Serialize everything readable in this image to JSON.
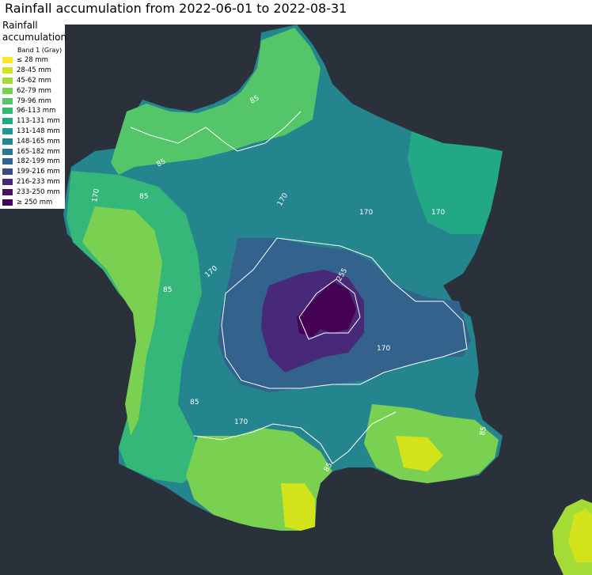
{
  "title": "Rainfall accumulation from 2022-06-01 to 2022-08-31",
  "legend": {
    "title_line1": "Rainfall",
    "title_line2": "accumulation",
    "band_label": "Band 1 (Gray)",
    "items": [
      {
        "label": "≤ 28 mm",
        "color": "#fde725"
      },
      {
        "label": "28-45 mm",
        "color": "#d2e21b"
      },
      {
        "label": "45-62 mm",
        "color": "#a5db36"
      },
      {
        "label": "62-79 mm",
        "color": "#7ad151"
      },
      {
        "label": "79-96 mm",
        "color": "#54c568"
      },
      {
        "label": "96-113 mm",
        "color": "#35b779"
      },
      {
        "label": "113-131 mm",
        "color": "#22a884"
      },
      {
        "label": "131-148 mm",
        "color": "#1f988b"
      },
      {
        "label": "148-165 mm",
        "color": "#23888e"
      },
      {
        "label": "165-182 mm",
        "color": "#2a788e"
      },
      {
        "label": "182-199 mm",
        "color": "#33638d"
      },
      {
        "label": "199-216 mm",
        "color": "#3e4989"
      },
      {
        "label": "216-233 mm",
        "color": "#482878"
      },
      {
        "label": "233-250 mm",
        "color": "#471063"
      },
      {
        "label": "≥ 250 mm",
        "color": "#440154"
      }
    ]
  },
  "contour_labels": [
    "85",
    "170",
    "255"
  ],
  "colors": {
    "background": "#2a313a",
    "contour": "#ffffff"
  }
}
